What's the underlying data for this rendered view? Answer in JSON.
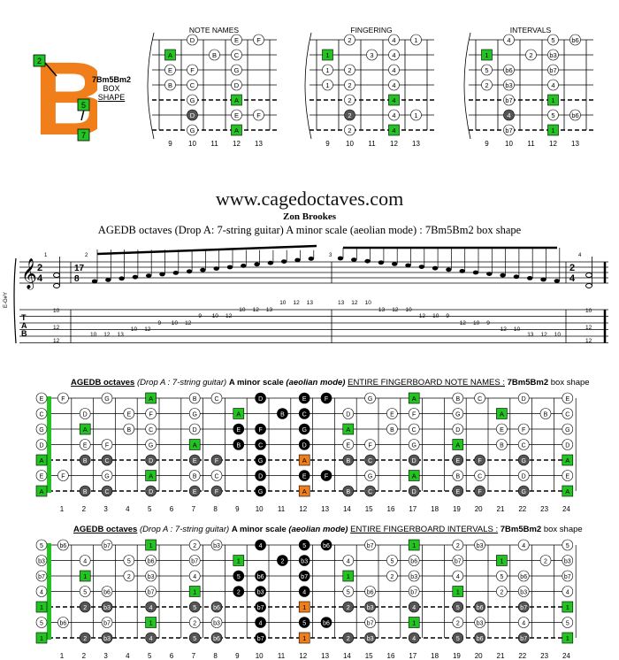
{
  "header": {
    "shape_letter": "B",
    "shape_markers": [
      "2",
      "5",
      "7"
    ],
    "shape_name": "7Bm5Bm2",
    "shape_sub1": "BOX",
    "shape_sub2": "SHAPE",
    "diagram_titles": [
      "NOTE NAMES",
      "FINGERING",
      "INTERVALS"
    ],
    "fret_numbers": [
      "9",
      "10",
      "11",
      "12",
      "13"
    ]
  },
  "site": "www.cagedoctaves.com",
  "composer": "Zon Brookes",
  "subtitle": "AGEDB octaves (Drop A: 7-string guitar) A minor scale (aeolian mode) : 7Bm5Bm2 box shape",
  "notation": {
    "tuning": "E-G#Y",
    "time_sig_a": [
      "2",
      "4"
    ],
    "time_sig_b": [
      "17",
      "8"
    ],
    "measure_numbers": [
      "1",
      "2",
      "3",
      "4"
    ],
    "tab_label": [
      "T",
      "A",
      "B"
    ],
    "tab_numbers_m2": [
      "10",
      "12",
      "13",
      "10",
      "12",
      "9",
      "10",
      "12",
      "9",
      "10",
      "12",
      "10",
      "12",
      "13",
      "10",
      "12",
      "13"
    ],
    "tab_numbers_m3": [
      "13",
      "12",
      "10",
      "13",
      "12",
      "10",
      "12",
      "10",
      "9",
      "12",
      "10",
      "9",
      "12",
      "10",
      "13",
      "12",
      "10"
    ]
  },
  "fretboard_notes": {
    "title_parts": [
      "AGEDB octaves",
      "(Drop A : 7-string guitar)",
      "A minor scale",
      "(aeolian mode)",
      "ENTIRE FINGERBOARD NOTE NAMES :",
      "7Bm5Bm2",
      "box shape"
    ]
  },
  "fretboard_intervals": {
    "title_parts": [
      "AGEDB octaves",
      "(Drop A : 7-string guitar)",
      "A minor scale",
      "(aeolian mode)",
      "ENTIRE FINGERBOARD INTERVALS :",
      "7Bm5Bm2",
      "box shape"
    ]
  },
  "fret_numbers_full": [
    "1",
    "2",
    "3",
    "4",
    "5",
    "6",
    "7",
    "8",
    "9",
    "10",
    "11",
    "12",
    "13",
    "14",
    "15",
    "16",
    "17",
    "18",
    "19",
    "20",
    "21",
    "22",
    "23",
    "24"
  ],
  "colors": {
    "orange": "#f07f1b",
    "green": "#22c322",
    "dark_gray": "#555555",
    "black": "#000000"
  }
}
